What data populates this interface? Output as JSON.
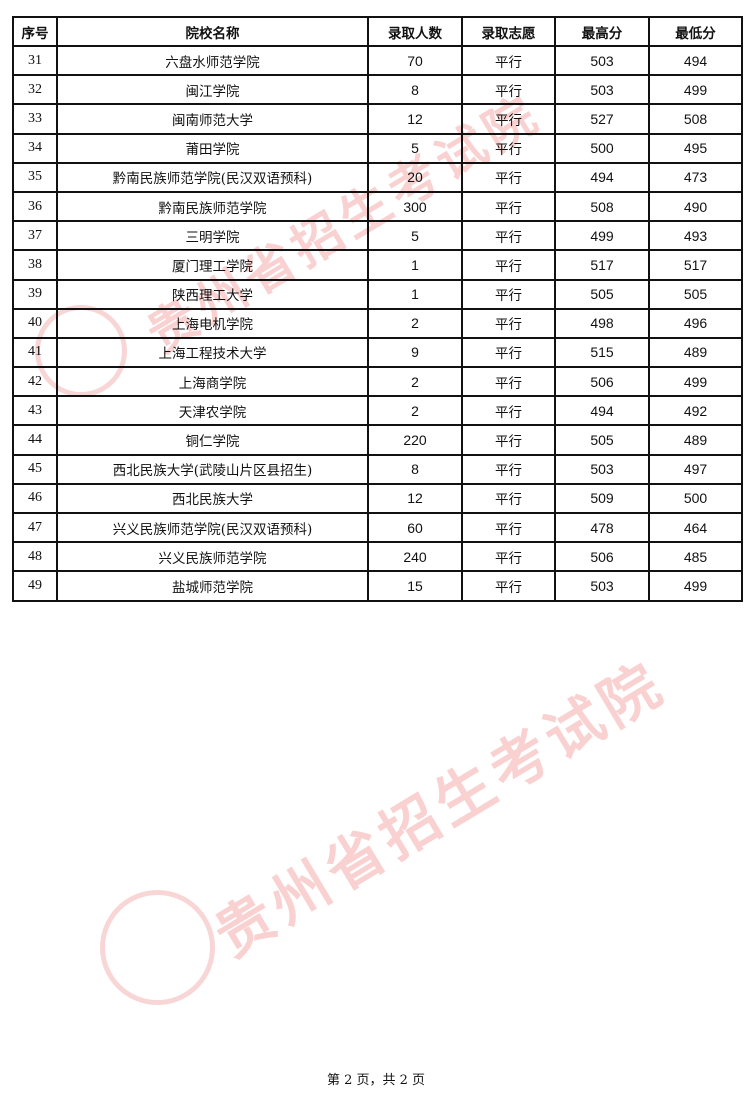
{
  "table": {
    "headers": [
      "序号",
      "院校名称",
      "录取人数",
      "录取志愿",
      "最高分",
      "最低分"
    ],
    "rows": [
      [
        "31",
        "六盘水师范学院",
        "70",
        "平行",
        "503",
        "494"
      ],
      [
        "32",
        "闽江学院",
        "8",
        "平行",
        "503",
        "499"
      ],
      [
        "33",
        "闽南师范大学",
        "12",
        "平行",
        "527",
        "508"
      ],
      [
        "34",
        "莆田学院",
        "5",
        "平行",
        "500",
        "495"
      ],
      [
        "35",
        "黔南民族师范学院(民汉双语预科)",
        "20",
        "平行",
        "494",
        "473"
      ],
      [
        "36",
        "黔南民族师范学院",
        "300",
        "平行",
        "508",
        "490"
      ],
      [
        "37",
        "三明学院",
        "5",
        "平行",
        "499",
        "493"
      ],
      [
        "38",
        "厦门理工学院",
        "1",
        "平行",
        "517",
        "517"
      ],
      [
        "39",
        "陕西理工大学",
        "1",
        "平行",
        "505",
        "505"
      ],
      [
        "40",
        "上海电机学院",
        "2",
        "平行",
        "498",
        "496"
      ],
      [
        "41",
        "上海工程技术大学",
        "9",
        "平行",
        "515",
        "489"
      ],
      [
        "42",
        "上海商学院",
        "2",
        "平行",
        "506",
        "499"
      ],
      [
        "43",
        "天津农学院",
        "2",
        "平行",
        "494",
        "492"
      ],
      [
        "44",
        "铜仁学院",
        "220",
        "平行",
        "505",
        "489"
      ],
      [
        "45",
        "西北民族大学(武陵山片区县招生)",
        "8",
        "平行",
        "503",
        "497"
      ],
      [
        "46",
        "西北民族大学",
        "12",
        "平行",
        "509",
        "500"
      ],
      [
        "47",
        "兴义民族师范学院(民汉双语预科)",
        "60",
        "平行",
        "478",
        "464"
      ],
      [
        "48",
        "兴义民族师范学院",
        "240",
        "平行",
        "506",
        "485"
      ],
      [
        "49",
        "盐城师范学院",
        "15",
        "平行",
        "503",
        "499"
      ]
    ]
  },
  "watermark": {
    "text": "贵州省招生考试院",
    "color": "#e85a5a"
  },
  "footer": {
    "page_text": "第 2 页，共 2 页"
  }
}
